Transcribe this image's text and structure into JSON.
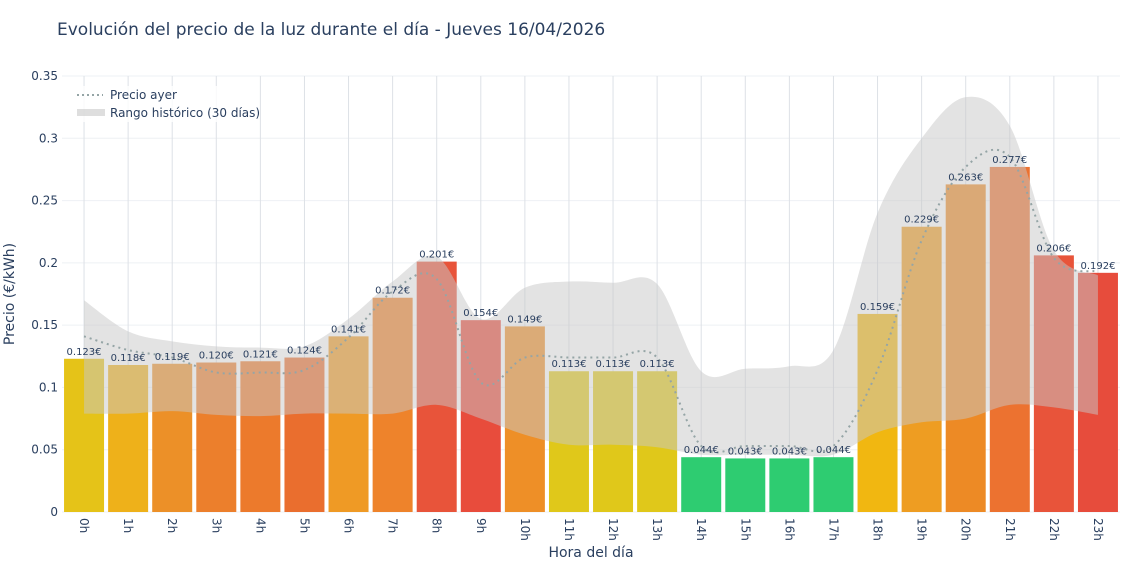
{
  "title": "Evolución del precio de la luz durante el día - Jueves 16/04/2026",
  "chart_data": {
    "type": "bar",
    "title": "Evolución del precio de la luz durante el día - Jueves 16/04/2026",
    "xlabel": "Hora del día",
    "ylabel": "Precio (€/kWh)",
    "ylim": [
      0,
      0.35
    ],
    "yticks": [
      0,
      0.05,
      0.1,
      0.15,
      0.2,
      0.25,
      0.3,
      0.35
    ],
    "ytick_labels": [
      "0",
      "0.05",
      "0.1",
      "0.15",
      "0.2",
      "0.25",
      "0.3",
      "0.35"
    ],
    "grid": true,
    "legend_placement": "top-left",
    "categories": [
      "0h",
      "1h",
      "2h",
      "3h",
      "4h",
      "5h",
      "6h",
      "7h",
      "8h",
      "9h",
      "10h",
      "11h",
      "12h",
      "13h",
      "14h",
      "15h",
      "16h",
      "17h",
      "18h",
      "19h",
      "20h",
      "21h",
      "22h",
      "23h"
    ],
    "values": [
      0.123,
      0.118,
      0.119,
      0.12,
      0.121,
      0.124,
      0.141,
      0.172,
      0.201,
      0.154,
      0.149,
      0.113,
      0.113,
      0.113,
      0.044,
      0.043,
      0.043,
      0.044,
      0.159,
      0.229,
      0.263,
      0.277,
      0.206,
      0.192
    ],
    "data_labels": [
      "0.123€",
      "0.118€",
      "0.119€",
      "0.120€",
      "0.121€",
      "0.124€",
      "0.141€",
      "0.172€",
      "0.201€",
      "0.154€",
      "0.149€",
      "0.113€",
      "0.113€",
      "0.113€",
      "0.044€",
      "0.043€",
      "0.043€",
      "0.044€",
      "0.159€",
      "0.229€",
      "0.263€",
      "0.277€",
      "0.206€",
      "0.192€"
    ],
    "bar_colors": [
      "#e5c318",
      "#eeb11a",
      "#ec9028",
      "#ec7f2c",
      "#ec7a2c",
      "#ea6e2e",
      "#ef9a25",
      "#ee832b",
      "#e8543a",
      "#e84c3c",
      "#ee8f27",
      "#e0c81a",
      "#e0c81a",
      "#e0c81a",
      "#2ecc71",
      "#2ecc71",
      "#2ecc71",
      "#2ecc71",
      "#f1b711",
      "#ee9d22",
      "#ed8a25",
      "#ec7230",
      "#e8543a",
      "#e74c3c"
    ],
    "series": [
      {
        "name": "Precio ayer",
        "style": "dotted-line",
        "color": "#95a5a6",
        "values": [
          0.141,
          0.13,
          0.124,
          0.112,
          0.112,
          0.114,
          0.14,
          0.177,
          0.187,
          0.104,
          0.124,
          0.124,
          0.124,
          0.124,
          0.053,
          0.053,
          0.053,
          0.053,
          0.114,
          0.218,
          0.277,
          0.285,
          0.204,
          0.193
        ]
      },
      {
        "name": "Rango histórico (30 días)",
        "style": "band",
        "color": "#c8c8c8",
        "lower": [
          0.079,
          0.079,
          0.081,
          0.078,
          0.077,
          0.079,
          0.079,
          0.079,
          0.086,
          0.075,
          0.062,
          0.054,
          0.054,
          0.052,
          0.046,
          0.046,
          0.046,
          0.046,
          0.064,
          0.072,
          0.075,
          0.086,
          0.084,
          0.078
        ],
        "upper": [
          0.17,
          0.145,
          0.137,
          0.133,
          0.132,
          0.133,
          0.155,
          0.185,
          0.205,
          0.155,
          0.18,
          0.185,
          0.184,
          0.183,
          0.113,
          0.115,
          0.117,
          0.13,
          0.24,
          0.3,
          0.333,
          0.31,
          0.21,
          0.19
        ]
      }
    ]
  }
}
